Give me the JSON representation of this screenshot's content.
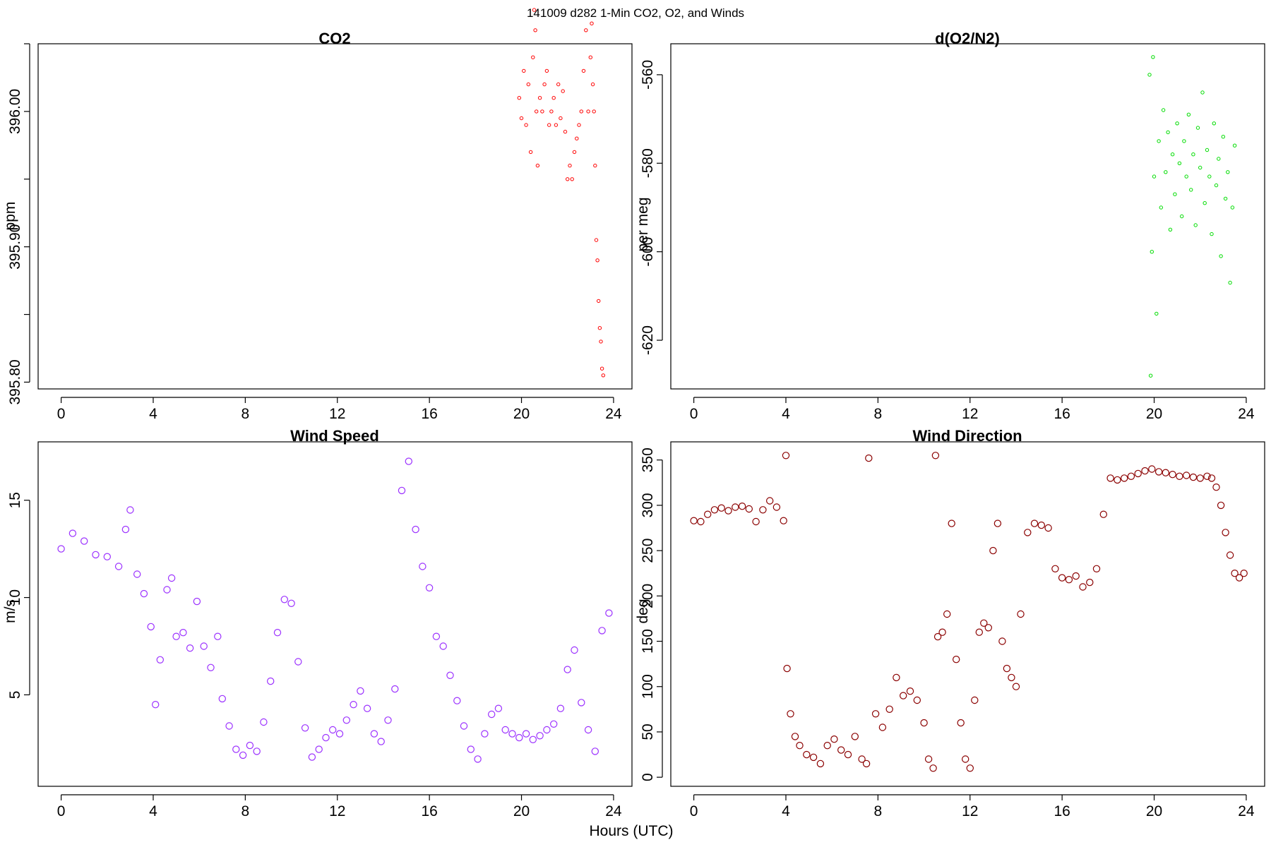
{
  "figure": {
    "suptitle": "141009   d282   1-Min CO2, O2, and Winds",
    "xlabel": "Hours (UTC)"
  },
  "chart_data": [
    {
      "type": "scatter",
      "title": "CO2",
      "xlabel": "",
      "ylabel": "ppm",
      "xlim": [
        -1,
        24.8
      ],
      "ylim": [
        395.795,
        396.05
      ],
      "x_ticks": [
        0,
        4,
        8,
        12,
        16,
        20,
        24
      ],
      "y_ticks": [
        395.8,
        395.85,
        395.9,
        395.95,
        396.0,
        396.05
      ],
      "y_tick_labels": [
        "395.80",
        "",
        "395.90",
        "",
        "396.00",
        ""
      ],
      "color": "#ff0000",
      "marker_size": "small",
      "series": [
        {
          "x": [
            19.9,
            20.0,
            20.1,
            20.2,
            20.3,
            20.4,
            20.5,
            20.55,
            20.6,
            20.65,
            20.7,
            20.8,
            20.9,
            21.0,
            21.1,
            21.2,
            21.3,
            21.4,
            21.5,
            21.6,
            21.7,
            21.8,
            21.9,
            22.0,
            22.1,
            22.2,
            22.3,
            22.4,
            22.5,
            22.6,
            22.7,
            22.8,
            22.9,
            23.0,
            23.05,
            23.1,
            23.15,
            23.2,
            23.25,
            23.3,
            23.35,
            23.4,
            23.45,
            23.5,
            23.55
          ],
          "y": [
            396.01,
            395.995,
            396.03,
            395.99,
            396.02,
            395.97,
            396.04,
            396.075,
            396.06,
            396.0,
            395.96,
            396.01,
            396.0,
            396.02,
            396.03,
            395.99,
            396.0,
            396.01,
            395.99,
            396.02,
            395.995,
            396.015,
            395.985,
            395.95,
            395.96,
            395.95,
            395.97,
            395.98,
            395.99,
            396.0,
            396.03,
            396.06,
            396.0,
            396.04,
            396.065,
            396.02,
            396.0,
            395.96,
            395.905,
            395.89,
            395.86,
            395.84,
            395.83,
            395.81,
            395.805
          ]
        }
      ]
    },
    {
      "type": "scatter",
      "title": "d(O2/N2)",
      "xlabel": "",
      "ylabel": "per meg",
      "xlim": [
        -1,
        24.8
      ],
      "ylim": [
        -631,
        -553
      ],
      "x_ticks": [
        0,
        4,
        8,
        12,
        16,
        20,
        24
      ],
      "y_ticks": [
        -620,
        -600,
        -580,
        -560
      ],
      "color": "#00dd00",
      "marker_size": "small",
      "series": [
        {
          "x": [
            19.8,
            19.85,
            19.9,
            19.95,
            20.0,
            20.1,
            20.2,
            20.3,
            20.4,
            20.5,
            20.6,
            20.7,
            20.8,
            20.9,
            21.0,
            21.1,
            21.2,
            21.3,
            21.4,
            21.5,
            21.6,
            21.7,
            21.8,
            21.9,
            22.0,
            22.1,
            22.2,
            22.3,
            22.4,
            22.5,
            22.6,
            22.7,
            22.8,
            22.9,
            23.0,
            23.1,
            23.2,
            23.3,
            23.4,
            23.5
          ],
          "y": [
            -560,
            -628,
            -600,
            -556,
            -583,
            -614,
            -575,
            -590,
            -568,
            -582,
            -573,
            -595,
            -578,
            -587,
            -571,
            -580,
            -592,
            -575,
            -583,
            -569,
            -586,
            -578,
            -594,
            -572,
            -581,
            -564,
            -589,
            -577,
            -583,
            -596,
            -571,
            -585,
            -579,
            -601,
            -574,
            -588,
            -582,
            -607,
            -590,
            -576
          ]
        }
      ]
    },
    {
      "type": "scatter",
      "title": "Wind Speed",
      "xlabel": "",
      "ylabel": "m/s",
      "xlim": [
        -1,
        24.8
      ],
      "ylim": [
        0.3,
        18.0
      ],
      "x_ticks": [
        0,
        4,
        8,
        12,
        16,
        20,
        24
      ],
      "y_ticks": [
        5,
        10,
        15
      ],
      "color": "#9b30ff",
      "marker_size": "large",
      "series": [
        {
          "x": [
            0,
            0.5,
            1,
            1.5,
            2,
            2.5,
            2.8,
            3,
            3.3,
            3.6,
            3.9,
            4.1,
            4.3,
            4.6,
            4.8,
            5.0,
            5.3,
            5.6,
            5.9,
            6.2,
            6.5,
            6.8,
            7.0,
            7.3,
            7.6,
            7.9,
            8.2,
            8.5,
            8.8,
            9.1,
            9.4,
            9.7,
            10.0,
            10.3,
            10.6,
            10.9,
            11.2,
            11.5,
            11.8,
            12.1,
            12.4,
            12.7,
            13.0,
            13.3,
            13.6,
            13.9,
            14.2,
            14.5,
            14.8,
            15.1,
            15.4,
            15.7,
            16.0,
            16.3,
            16.6,
            16.9,
            17.2,
            17.5,
            17.8,
            18.1,
            18.4,
            18.7,
            19.0,
            19.3,
            19.6,
            19.9,
            20.2,
            20.5,
            20.8,
            21.1,
            21.4,
            21.7,
            22.0,
            22.3,
            22.6,
            22.9,
            23.2,
            23.5,
            23.8
          ],
          "y": [
            12.5,
            13.3,
            12.9,
            12.2,
            12.1,
            11.6,
            13.5,
            14.5,
            11.2,
            10.2,
            8.5,
            4.5,
            6.8,
            10.4,
            11.0,
            8.0,
            8.2,
            7.4,
            9.8,
            7.5,
            6.4,
            8.0,
            4.8,
            3.4,
            2.2,
            1.9,
            2.4,
            2.1,
            3.6,
            5.7,
            8.2,
            9.9,
            9.7,
            6.7,
            3.3,
            1.8,
            2.2,
            2.8,
            3.2,
            3.0,
            3.7,
            4.5,
            5.2,
            4.3,
            3.0,
            2.6,
            3.7,
            5.3,
            15.5,
            17.0,
            13.5,
            11.6,
            10.5,
            8.0,
            7.5,
            6.0,
            4.7,
            3.4,
            2.2,
            1.7,
            3.0,
            4.0,
            4.3,
            3.2,
            3.0,
            2.8,
            3.0,
            2.7,
            2.9,
            3.2,
            3.5,
            4.3,
            6.3,
            7.3,
            4.6,
            3.2,
            2.1,
            8.3,
            9.2
          ]
        }
      ]
    },
    {
      "type": "scatter",
      "title": "Wind Direction",
      "xlabel": "",
      "ylabel": "deg",
      "xlim": [
        -1,
        24.8
      ],
      "ylim": [
        -10,
        370
      ],
      "x_ticks": [
        0,
        4,
        8,
        12,
        16,
        20,
        24
      ],
      "y_ticks": [
        0,
        50,
        100,
        150,
        200,
        250,
        300,
        350
      ],
      "color": "#8b0000",
      "marker_size": "large",
      "series": [
        {
          "x": [
            0,
            0.3,
            0.6,
            0.9,
            1.2,
            1.5,
            1.8,
            2.1,
            2.4,
            2.7,
            3.0,
            3.3,
            3.6,
            3.9,
            4.0,
            4.05,
            4.2,
            4.4,
            4.6,
            4.9,
            5.2,
            5.5,
            5.8,
            6.1,
            6.4,
            6.7,
            7.0,
            7.3,
            7.5,
            7.6,
            7.9,
            8.2,
            8.5,
            8.8,
            9.1,
            9.4,
            9.7,
            10.0,
            10.2,
            10.4,
            10.5,
            10.6,
            10.8,
            11.0,
            11.2,
            11.4,
            11.6,
            11.8,
            12.0,
            12.2,
            12.4,
            12.6,
            12.8,
            13.0,
            13.2,
            13.4,
            13.6,
            13.8,
            14.0,
            14.2,
            14.5,
            14.8,
            15.1,
            15.4,
            15.7,
            16.0,
            16.3,
            16.6,
            16.9,
            17.2,
            17.5,
            17.8,
            18.1,
            18.4,
            18.7,
            19.0,
            19.3,
            19.6,
            19.9,
            20.2,
            20.5,
            20.8,
            21.1,
            21.4,
            21.7,
            22.0,
            22.3,
            22.5,
            22.7,
            22.9,
            23.1,
            23.3,
            23.5,
            23.7,
            23.9
          ],
          "y": [
            283,
            282,
            290,
            295,
            297,
            294,
            298,
            299,
            296,
            282,
            295,
            305,
            298,
            283,
            355,
            120,
            70,
            45,
            35,
            25,
            22,
            15,
            35,
            42,
            30,
            25,
            45,
            20,
            15,
            352,
            70,
            55,
            75,
            110,
            90,
            95,
            85,
            60,
            20,
            10,
            355,
            155,
            160,
            180,
            280,
            130,
            60,
            20,
            10,
            85,
            160,
            170,
            165,
            250,
            280,
            150,
            120,
            110,
            100,
            180,
            270,
            280,
            278,
            275,
            230,
            220,
            218,
            222,
            210,
            215,
            230,
            290,
            330,
            328,
            330,
            332,
            335,
            338,
            340,
            337,
            336,
            334,
            332,
            333,
            331,
            330,
            332,
            330,
            320,
            300,
            270,
            245,
            225,
            220,
            225
          ]
        }
      ]
    }
  ]
}
